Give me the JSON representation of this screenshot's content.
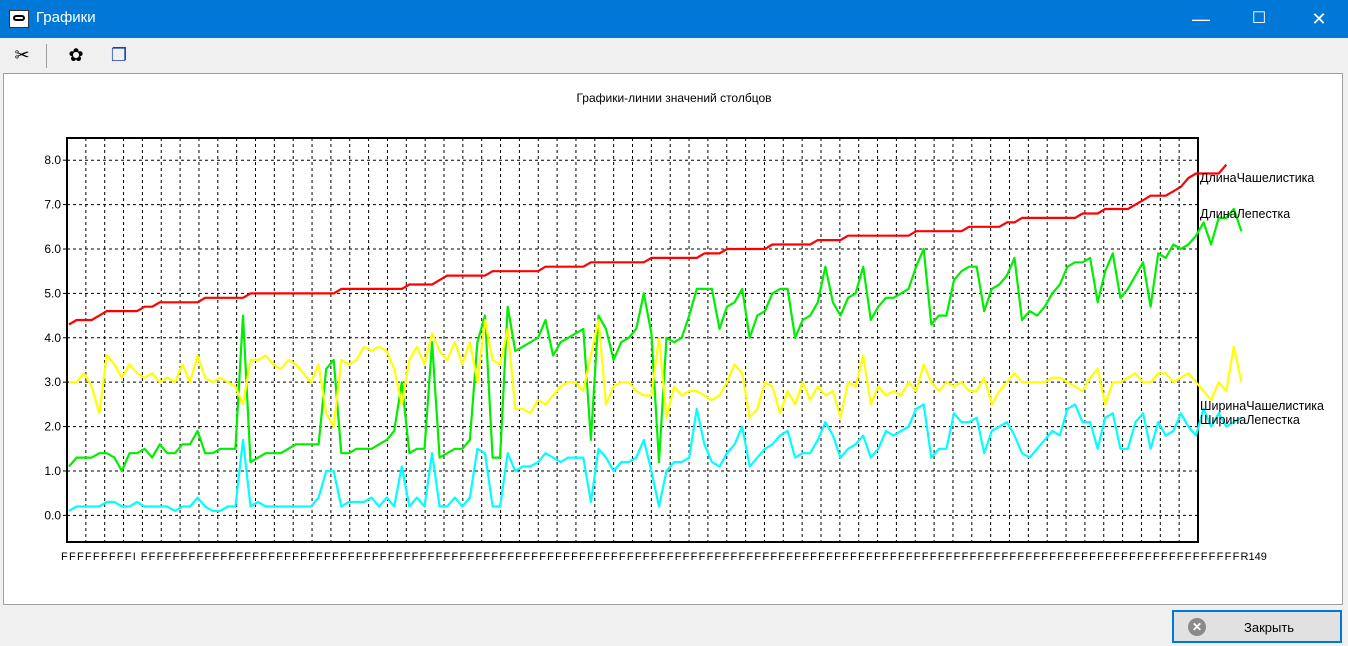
{
  "window": {
    "title": "Графики",
    "minimize_glyph": "—",
    "maximize_glyph": "☐",
    "close_glyph": "✕"
  },
  "toolbar": {
    "icons": [
      "tools-icon",
      "palette-icon",
      "copy-icon"
    ],
    "tools_glyph": "✂",
    "palette_glyph": "✿",
    "copy_glyph": "❐"
  },
  "footer": {
    "close_label": "Закрыть",
    "close_glyph": "✕"
  },
  "colors": {
    "titlebar": "#0078d7",
    "series_sepal_length": "#ff0000",
    "series_petal_length": "#00ee00",
    "series_sepal_width": "#ffff00",
    "series_petal_width": "#00ffff"
  },
  "chart_data": {
    "type": "line",
    "title": "Графики-линии значений столбцов",
    "ylim": [
      -0.6,
      8.5
    ],
    "yticks": [
      "0.0",
      "1.0",
      "2.0",
      "3.0",
      "4.0",
      "5.0",
      "6.0",
      "7.0",
      "8.0"
    ],
    "x_count": 150,
    "x_tick_label": "F",
    "x_tick_label_alt": "I",
    "x_tick_label_end": "R",
    "x_last_label": "149",
    "grid": true,
    "legend": "right, at line ends",
    "series": [
      {
        "name": "ДлинаЧашелистика",
        "color": "#ff0000",
        "values": [
          4.3,
          4.4,
          4.4,
          4.4,
          4.5,
          4.6,
          4.6,
          4.6,
          4.6,
          4.6,
          4.7,
          4.7,
          4.8,
          4.8,
          4.8,
          4.8,
          4.8,
          4.8,
          4.9,
          4.9,
          4.9,
          4.9,
          4.9,
          4.9,
          5.0,
          5.0,
          5.0,
          5.0,
          5.0,
          5.0,
          5.0,
          5.0,
          5.0,
          5.0,
          5.0,
          5.0,
          5.1,
          5.1,
          5.1,
          5.1,
          5.1,
          5.1,
          5.1,
          5.1,
          5.1,
          5.2,
          5.2,
          5.2,
          5.2,
          5.3,
          5.4,
          5.4,
          5.4,
          5.4,
          5.4,
          5.4,
          5.5,
          5.5,
          5.5,
          5.5,
          5.5,
          5.5,
          5.5,
          5.6,
          5.6,
          5.6,
          5.6,
          5.6,
          5.6,
          5.7,
          5.7,
          5.7,
          5.7,
          5.7,
          5.7,
          5.7,
          5.7,
          5.8,
          5.8,
          5.8,
          5.8,
          5.8,
          5.8,
          5.8,
          5.9,
          5.9,
          5.9,
          6.0,
          6.0,
          6.0,
          6.0,
          6.0,
          6.0,
          6.1,
          6.1,
          6.1,
          6.1,
          6.1,
          6.1,
          6.2,
          6.2,
          6.2,
          6.2,
          6.3,
          6.3,
          6.3,
          6.3,
          6.3,
          6.3,
          6.3,
          6.3,
          6.3,
          6.4,
          6.4,
          6.4,
          6.4,
          6.4,
          6.4,
          6.4,
          6.5,
          6.5,
          6.5,
          6.5,
          6.5,
          6.6,
          6.6,
          6.7,
          6.7,
          6.7,
          6.7,
          6.7,
          6.7,
          6.7,
          6.7,
          6.8,
          6.8,
          6.8,
          6.9,
          6.9,
          6.9,
          6.9,
          7.0,
          7.1,
          7.2,
          7.2,
          7.2,
          7.3,
          7.4,
          7.6,
          7.7,
          7.7,
          7.7,
          7.7,
          7.9
        ]
      },
      {
        "name": "ДлинаЛепестка",
        "color": "#00ee00",
        "values": [
          1.1,
          1.3,
          1.3,
          1.3,
          1.4,
          1.4,
          1.3,
          1.0,
          1.4,
          1.4,
          1.5,
          1.3,
          1.6,
          1.4,
          1.4,
          1.6,
          1.6,
          1.9,
          1.4,
          1.4,
          1.5,
          1.5,
          1.5,
          4.5,
          1.2,
          1.3,
          1.4,
          1.4,
          1.4,
          1.5,
          1.6,
          1.6,
          1.6,
          1.6,
          3.3,
          3.5,
          1.4,
          1.4,
          1.5,
          1.5,
          1.5,
          1.6,
          1.7,
          1.9,
          3.0,
          1.4,
          1.5,
          1.5,
          3.9,
          1.3,
          1.4,
          1.5,
          1.5,
          1.7,
          3.9,
          4.5,
          1.3,
          1.3,
          4.7,
          3.7,
          3.8,
          3.9,
          4.0,
          4.4,
          3.6,
          3.9,
          4.0,
          4.1,
          4.2,
          1.7,
          4.5,
          4.2,
          3.5,
          3.9,
          4.0,
          4.2,
          5.0,
          4.1,
          1.2,
          4.0,
          3.9,
          4.0,
          4.5,
          5.1,
          5.1,
          5.1,
          4.2,
          4.7,
          4.8,
          5.1,
          4.0,
          4.5,
          4.6,
          5.0,
          5.1,
          5.1,
          4.0,
          4.4,
          4.5,
          4.8,
          5.6,
          4.8,
          4.5,
          4.9,
          5.0,
          5.6,
          4.4,
          4.7,
          4.9,
          4.9,
          5.0,
          5.1,
          5.6,
          6.0,
          4.3,
          4.5,
          4.5,
          5.3,
          5.5,
          5.6,
          5.6,
          4.6,
          5.1,
          5.2,
          5.4,
          5.8,
          4.4,
          4.6,
          4.5,
          4.7,
          5.0,
          5.2,
          5.6,
          5.7,
          5.7,
          5.8,
          4.8,
          5.5,
          5.9,
          4.9,
          5.1,
          5.4,
          5.7,
          4.7,
          5.9,
          5.8,
          6.1,
          6.0,
          6.1,
          6.3,
          6.6,
          6.1,
          6.7,
          6.7,
          6.9,
          6.4
        ]
      },
      {
        "name": "ШиринаЧашелистика",
        "color": "#ffff00",
        "values": [
          3.0,
          3.0,
          3.2,
          2.9,
          2.3,
          3.6,
          3.4,
          3.1,
          3.4,
          3.2,
          3.1,
          3.2,
          3.0,
          3.1,
          3.0,
          3.4,
          3.0,
          3.6,
          3.1,
          3.0,
          3.1,
          3.0,
          2.9,
          2.5,
          3.5,
          3.5,
          3.6,
          3.4,
          3.3,
          3.5,
          3.4,
          3.2,
          3.0,
          3.4,
          2.3,
          2.0,
          3.5,
          3.4,
          3.5,
          3.8,
          3.7,
          3.8,
          3.7,
          3.3,
          2.5,
          3.5,
          3.8,
          3.4,
          4.1,
          3.7,
          3.5,
          3.9,
          3.4,
          3.9,
          3.0,
          4.4,
          3.5,
          3.4,
          4.2,
          2.4,
          2.4,
          2.3,
          2.6,
          2.5,
          2.7,
          2.9,
          3.0,
          3.0,
          2.8,
          3.6,
          4.4,
          2.5,
          2.9,
          3.0,
          3.0,
          2.8,
          2.7,
          2.7,
          4.0,
          2.2,
          2.9,
          2.7,
          2.8,
          2.8,
          2.7,
          2.6,
          2.7,
          3.0,
          3.4,
          3.2,
          2.2,
          2.4,
          3.0,
          2.9,
          2.3,
          2.8,
          2.5,
          3.0,
          2.6,
          2.9,
          2.7,
          2.8,
          2.2,
          3.0,
          2.9,
          3.6,
          2.5,
          2.9,
          2.7,
          2.8,
          2.7,
          3.0,
          2.8,
          3.4,
          3.0,
          2.8,
          3.0,
          2.9,
          3.0,
          2.8,
          2.8,
          3.1,
          2.5,
          2.8,
          3.0,
          3.2,
          3.0,
          3.0,
          3.0,
          3.0,
          3.1,
          3.1,
          3.0,
          2.9,
          2.8,
          3.1,
          3.3,
          2.5,
          3.0,
          3.0,
          3.1,
          3.2,
          3.0,
          3.0,
          3.2,
          3.2,
          3.0,
          3.1,
          3.2,
          3.0,
          2.8,
          2.6,
          3.0,
          2.8,
          3.8,
          3.0
        ]
      },
      {
        "name": "ШиринаЛепестка",
        "color": "#00ffff",
        "values": [
          0.1,
          0.2,
          0.2,
          0.2,
          0.2,
          0.3,
          0.3,
          0.2,
          0.2,
          0.3,
          0.2,
          0.2,
          0.2,
          0.2,
          0.1,
          0.2,
          0.2,
          0.4,
          0.2,
          0.1,
          0.1,
          0.2,
          0.2,
          1.7,
          0.2,
          0.3,
          0.2,
          0.2,
          0.2,
          0.2,
          0.2,
          0.2,
          0.2,
          0.4,
          1.0,
          1.0,
          0.2,
          0.3,
          0.3,
          0.3,
          0.4,
          0.2,
          0.4,
          0.2,
          1.1,
          0.2,
          0.4,
          0.2,
          1.4,
          0.2,
          0.2,
          0.4,
          0.2,
          0.4,
          1.5,
          1.4,
          0.2,
          0.2,
          1.4,
          1.0,
          1.1,
          1.1,
          1.2,
          1.4,
          1.3,
          1.2,
          1.3,
          1.3,
          1.3,
          0.3,
          1.5,
          1.3,
          1.0,
          1.2,
          1.2,
          1.3,
          1.7,
          1.0,
          0.2,
          1.0,
          1.2,
          1.2,
          1.3,
          2.4,
          1.6,
          1.2,
          1.1,
          1.4,
          1.6,
          2.0,
          1.1,
          1.3,
          1.5,
          1.6,
          1.8,
          1.9,
          1.3,
          1.4,
          1.4,
          1.7,
          2.1,
          1.8,
          1.3,
          1.5,
          1.6,
          1.8,
          1.3,
          1.5,
          1.9,
          1.8,
          1.9,
          2.0,
          2.4,
          2.5,
          1.3,
          1.5,
          1.5,
          2.3,
          2.1,
          2.1,
          2.2,
          1.4,
          1.9,
          2.0,
          2.1,
          1.8,
          1.4,
          1.3,
          1.5,
          1.7,
          1.9,
          1.8,
          2.4,
          2.5,
          2.1,
          2.1,
          1.5,
          2.2,
          2.3,
          1.5,
          1.5,
          2.1,
          2.3,
          1.5,
          2.1,
          1.8,
          1.9,
          2.3,
          2.0,
          1.8,
          2.4,
          2.0,
          2.3,
          2.0,
          2.1,
          2.2
        ]
      }
    ]
  }
}
